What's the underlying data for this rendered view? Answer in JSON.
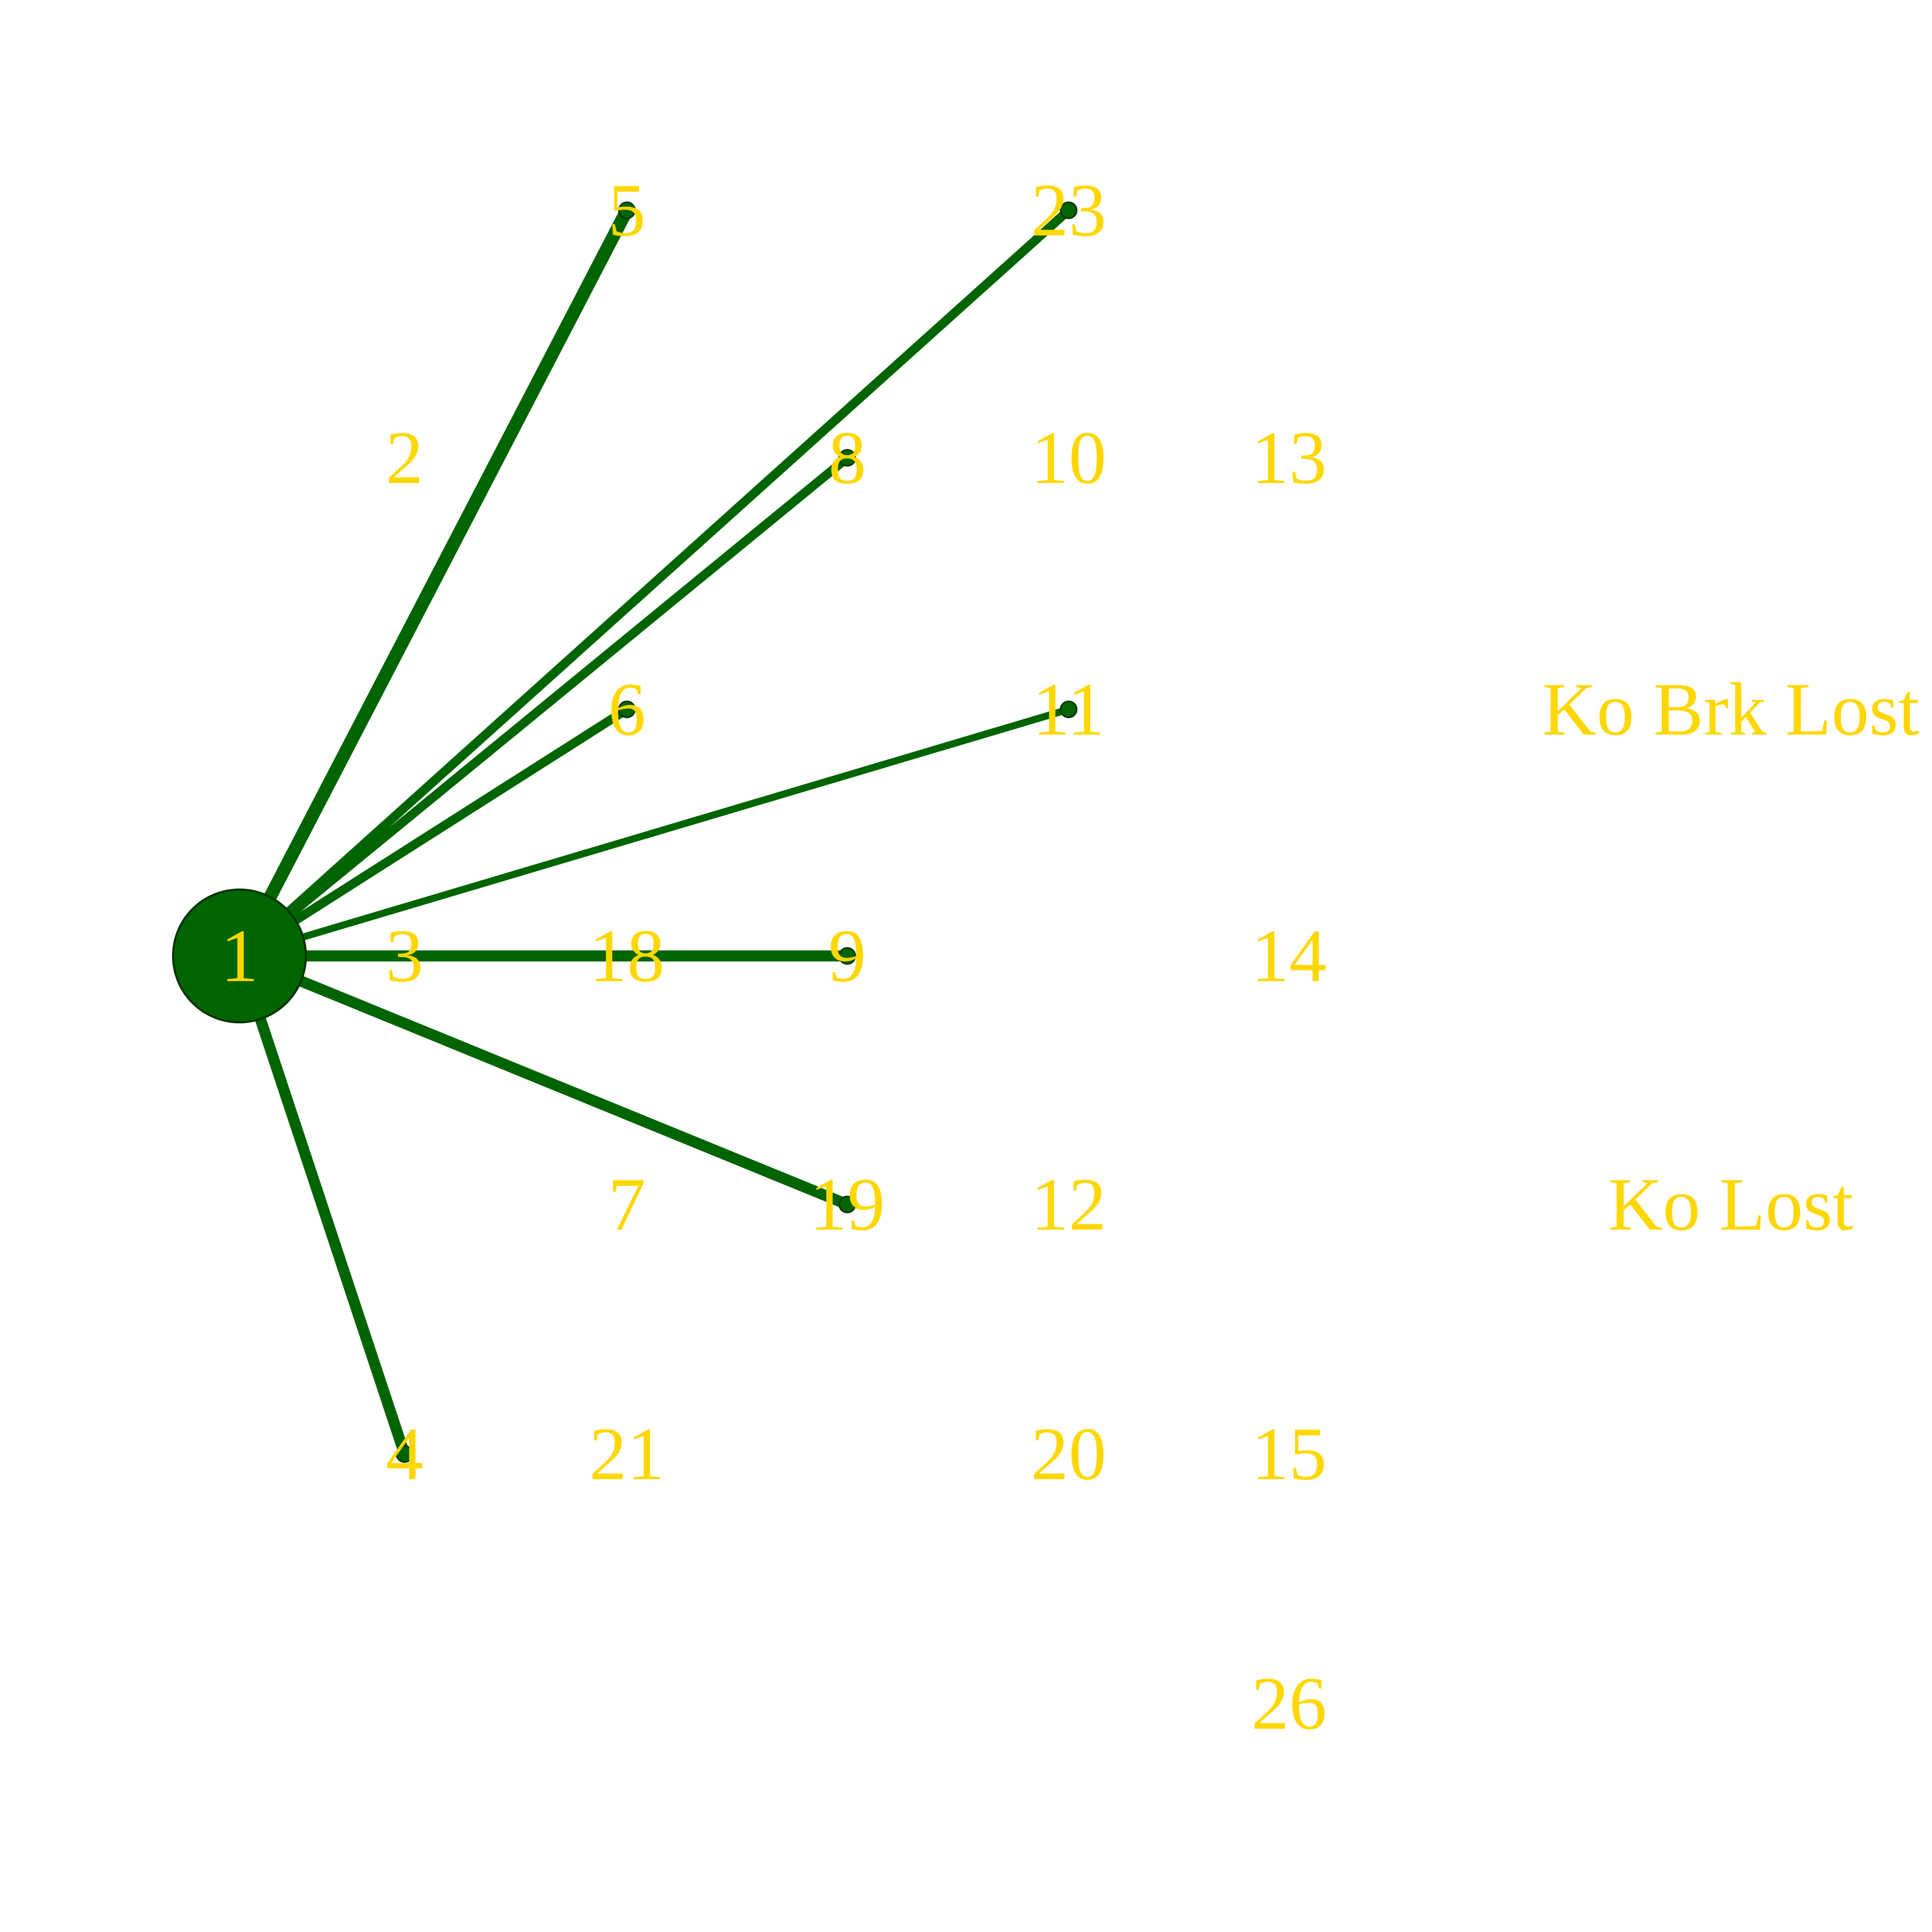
{
  "colors": {
    "edge": "#006400",
    "node_fill": "#006400",
    "node_stroke": "#003300",
    "label": "#FFD700",
    "background": "#ffffff"
  },
  "graph": {
    "hub": "1",
    "nodes": [
      {
        "id": "1",
        "label": "1",
        "hub": true
      },
      {
        "id": "2",
        "label": "2"
      },
      {
        "id": "3",
        "label": "3"
      },
      {
        "id": "4",
        "label": "4"
      },
      {
        "id": "5",
        "label": "5"
      },
      {
        "id": "6",
        "label": "6"
      },
      {
        "id": "7",
        "label": "7"
      },
      {
        "id": "8",
        "label": "8"
      },
      {
        "id": "9",
        "label": "9"
      },
      {
        "id": "10",
        "label": "10"
      },
      {
        "id": "11",
        "label": "11"
      },
      {
        "id": "12",
        "label": "12"
      },
      {
        "id": "13",
        "label": "13"
      },
      {
        "id": "14",
        "label": "14"
      },
      {
        "id": "15",
        "label": "15"
      },
      {
        "id": "18",
        "label": "18"
      },
      {
        "id": "19",
        "label": "19"
      },
      {
        "id": "20",
        "label": "20"
      },
      {
        "id": "21",
        "label": "21"
      },
      {
        "id": "23",
        "label": "23"
      },
      {
        "id": "26",
        "label": "26"
      },
      {
        "id": "ko-brk-lost",
        "label": "Ko Brk Lost"
      },
      {
        "id": "ko-lost",
        "label": "Ko Lost"
      }
    ],
    "edges": [
      {
        "source": "1",
        "target": "5",
        "weight": 5
      },
      {
        "source": "1",
        "target": "23",
        "weight": 3
      },
      {
        "source": "1",
        "target": "8",
        "weight": 3
      },
      {
        "source": "1",
        "target": "6",
        "weight": 3
      },
      {
        "source": "1",
        "target": "11",
        "weight": 2
      },
      {
        "source": "1",
        "target": "9",
        "weight": 4
      },
      {
        "source": "1",
        "target": "19",
        "weight": 4
      },
      {
        "source": "1",
        "target": "4",
        "weight": 4
      }
    ]
  }
}
